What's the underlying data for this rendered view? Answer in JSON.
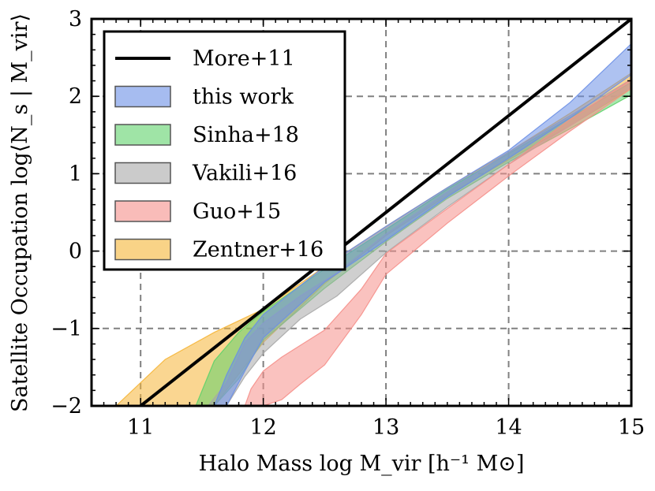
{
  "chart_data": {
    "type": "area",
    "title": "",
    "xlabel": "Halo Mass log M_vir [h⁻¹ M⊙]",
    "ylabel": "Satellite Occupation log⟨N_s | M_vir⟩",
    "xlim": [
      10.6,
      15
    ],
    "ylim": [
      -2,
      3
    ],
    "x_ticks": [
      11,
      12,
      13,
      14,
      15
    ],
    "y_ticks": [
      -2,
      -1,
      0,
      1,
      2,
      3
    ],
    "x_tick_labels": [
      "11",
      "12",
      "13",
      "14",
      "15"
    ],
    "y_tick_labels": [
      "−2",
      "−1",
      "0",
      "1",
      "2",
      "3"
    ],
    "grid": true,
    "legend_position": "top-left",
    "series": [
      {
        "name": "More+11",
        "kind": "line",
        "color": "#000000",
        "x": [
          11.0,
          15.0
        ],
        "y": [
          -2.0,
          3.0
        ]
      },
      {
        "name": "Zentner+16",
        "kind": "band",
        "color": "#f5b537",
        "x": [
          10.8,
          11.2,
          11.6,
          12.0,
          12.5,
          13.0,
          13.5,
          14.0,
          14.5,
          15.0
        ],
        "lower": [
          -2.0,
          -2.0,
          -2.0,
          -1.18,
          -0.42,
          0.2,
          0.72,
          1.18,
          1.62,
          2.1
        ],
        "upper": [
          -2.0,
          -1.4,
          -1.05,
          -0.75,
          -0.2,
          0.32,
          0.82,
          1.28,
          1.78,
          2.3
        ]
      },
      {
        "name": "Sinha+18",
        "kind": "band",
        "color": "#5fd26a",
        "x": [
          11.45,
          11.6,
          11.8,
          12.0,
          12.5,
          13.0,
          13.5,
          14.0,
          14.5,
          15.0
        ],
        "lower": [
          -2.0,
          -2.0,
          -1.65,
          -1.15,
          -0.48,
          0.12,
          0.68,
          1.15,
          1.58,
          2.02
        ],
        "upper": [
          -2.0,
          -1.42,
          -1.05,
          -0.78,
          -0.23,
          0.28,
          0.8,
          1.26,
          1.72,
          2.18
        ]
      },
      {
        "name": "Vakili+16",
        "kind": "band",
        "color": "#a8a8a8",
        "x": [
          11.55,
          11.7,
          11.85,
          12.0,
          12.3,
          12.6,
          13.0,
          13.5,
          14.0,
          14.5,
          15.0
        ],
        "lower": [
          -2.0,
          -2.0,
          -1.62,
          -1.32,
          -0.88,
          -0.58,
          -0.02,
          0.57,
          1.12,
          1.62,
          2.12
        ],
        "upper": [
          -2.0,
          -1.7,
          -1.18,
          -0.93,
          -0.58,
          -0.28,
          0.22,
          0.76,
          1.28,
          1.75,
          2.22
        ]
      },
      {
        "name": "this work",
        "kind": "band",
        "color": "#6b8fe6",
        "x": [
          11.6,
          11.7,
          11.85,
          12.0,
          12.5,
          13.0,
          13.5,
          14.0,
          14.5,
          15.0
        ],
        "lower": [
          -2.0,
          -2.0,
          -1.55,
          -1.12,
          -0.4,
          0.14,
          0.7,
          1.2,
          1.72,
          2.28
        ],
        "upper": [
          -2.0,
          -1.6,
          -1.12,
          -0.82,
          -0.2,
          0.32,
          0.82,
          1.3,
          1.92,
          2.68
        ]
      },
      {
        "name": "Guo+15",
        "kind": "band",
        "color": "#f58f8a",
        "x": [
          11.85,
          11.9,
          12.0,
          12.15,
          12.3,
          12.5,
          12.8,
          13.0,
          13.5,
          14.0,
          14.5,
          15.0
        ],
        "lower": [
          -2.0,
          -2.0,
          -2.0,
          -1.92,
          -1.72,
          -1.47,
          -0.82,
          -0.3,
          0.36,
          0.97,
          1.55,
          2.1
        ],
        "upper": [
          -2.0,
          -1.78,
          -1.55,
          -1.37,
          -1.22,
          -1.02,
          -0.49,
          -0.03,
          0.55,
          1.12,
          1.7,
          2.22
        ]
      }
    ],
    "legend_order": [
      "More+11",
      "this work",
      "Sinha+18",
      "Vakili+16",
      "Guo+15",
      "Zentner+16"
    ]
  }
}
